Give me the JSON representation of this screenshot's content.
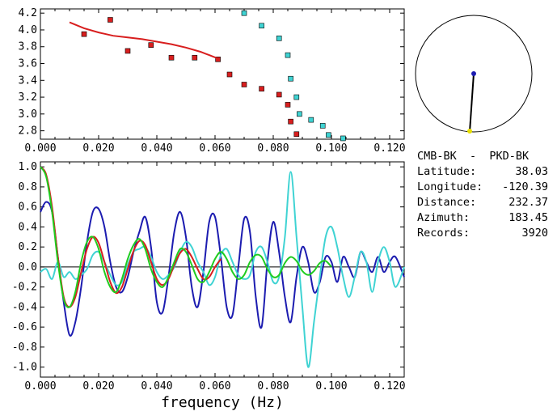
{
  "chart_data": [
    {
      "type": "scatter",
      "xlim": [
        0.0,
        0.125
      ],
      "ylim": [
        2.7,
        4.25
      ],
      "x_ticks": [
        "0.000",
        "0.020",
        "0.040",
        "0.060",
        "0.080",
        "0.100",
        "0.120"
      ],
      "y_ticks": [
        "2.8",
        "3.0",
        "3.2",
        "3.4",
        "3.6",
        "3.8",
        "4.0",
        "4.2"
      ],
      "series": [
        {
          "color": "#d81e1e",
          "marker": "square",
          "points": [
            [
              0.015,
              3.95
            ],
            [
              0.024,
              4.12
            ],
            [
              0.03,
              3.75
            ],
            [
              0.038,
              3.82
            ],
            [
              0.045,
              3.67
            ],
            [
              0.053,
              3.67
            ],
            [
              0.061,
              3.65
            ],
            [
              0.065,
              3.47
            ],
            [
              0.07,
              3.35
            ],
            [
              0.076,
              3.3
            ],
            [
              0.082,
              3.23
            ],
            [
              0.085,
              3.11
            ],
            [
              0.086,
              2.91
            ],
            [
              0.088,
              2.76
            ]
          ]
        },
        {
          "color": "#3fd3d3",
          "marker": "square",
          "points": [
            [
              0.07,
              4.2
            ],
            [
              0.076,
              4.05
            ],
            [
              0.082,
              3.9
            ],
            [
              0.085,
              3.7
            ],
            [
              0.086,
              3.42
            ],
            [
              0.088,
              3.2
            ],
            [
              0.089,
              3.0
            ],
            [
              0.093,
              2.93
            ],
            [
              0.097,
              2.86
            ],
            [
              0.099,
              2.75
            ],
            [
              0.104,
              2.71
            ]
          ]
        },
        {
          "color": "#d81e1e",
          "style": "line",
          "points": [
            [
              0.01,
              4.09
            ],
            [
              0.015,
              4.02
            ],
            [
              0.02,
              3.97
            ],
            [
              0.025,
              3.93
            ],
            [
              0.03,
              3.91
            ],
            [
              0.035,
              3.89
            ],
            [
              0.04,
              3.86
            ],
            [
              0.045,
              3.83
            ],
            [
              0.05,
              3.79
            ],
            [
              0.055,
              3.74
            ],
            [
              0.058,
              3.7
            ],
            [
              0.061,
              3.66
            ]
          ]
        }
      ]
    },
    {
      "type": "line",
      "xlabel": "frequency (Hz)",
      "xlim": [
        0.0,
        0.125
      ],
      "ylim": [
        -1.1,
        1.05
      ],
      "x_ticks": [
        "0.000",
        "0.020",
        "0.040",
        "0.060",
        "0.080",
        "0.100",
        "0.120"
      ],
      "y_ticks": [
        "1.0",
        "0.8",
        "0.6",
        "0.4",
        "0.2",
        "0.0",
        "-0.2",
        "-0.4",
        "-0.6",
        "-0.8",
        "-1.0"
      ],
      "zero_line": true,
      "series": [
        {
          "color": "#1c1cb0",
          "x": [
            0.0,
            0.002,
            0.004,
            0.006,
            0.008,
            0.01,
            0.012,
            0.014,
            0.016,
            0.018,
            0.02,
            0.022,
            0.024,
            0.026,
            0.028,
            0.03,
            0.032,
            0.034,
            0.036,
            0.038,
            0.04,
            0.042,
            0.044,
            0.046,
            0.048,
            0.05,
            0.052,
            0.054,
            0.056,
            0.058,
            0.06,
            0.062,
            0.064,
            0.066,
            0.068,
            0.07,
            0.072,
            0.074,
            0.076,
            0.078,
            0.08,
            0.082,
            0.084,
            0.086,
            0.088,
            0.09,
            0.092,
            0.094,
            0.096,
            0.098,
            0.1,
            0.102,
            0.104,
            0.106,
            0.108,
            0.11,
            0.112,
            0.114,
            0.116,
            0.118,
            0.12,
            0.122,
            0.125
          ],
          "y": [
            0.55,
            0.65,
            0.55,
            0.1,
            -0.35,
            -0.68,
            -0.55,
            -0.2,
            0.25,
            0.55,
            0.58,
            0.4,
            0.05,
            -0.2,
            -0.25,
            -0.1,
            0.15,
            0.35,
            0.5,
            0.2,
            -0.35,
            -0.45,
            -0.1,
            0.35,
            0.55,
            0.3,
            -0.2,
            -0.4,
            -0.05,
            0.45,
            0.5,
            0.1,
            -0.4,
            -0.48,
            0.0,
            0.48,
            0.35,
            -0.3,
            -0.6,
            0.05,
            0.45,
            0.15,
            -0.3,
            -0.55,
            -0.1,
            0.2,
            0.05,
            -0.25,
            -0.15,
            0.1,
            0.05,
            -0.15,
            0.1,
            0.0,
            -0.1,
            0.15,
            0.05,
            -0.05,
            0.1,
            -0.05,
            0.05,
            0.1,
            -0.1
          ]
        },
        {
          "color": "#3fd3d3",
          "x": [
            0.0,
            0.002,
            0.004,
            0.006,
            0.008,
            0.01,
            0.012,
            0.014,
            0.016,
            0.018,
            0.02,
            0.022,
            0.024,
            0.026,
            0.028,
            0.03,
            0.032,
            0.034,
            0.036,
            0.038,
            0.04,
            0.042,
            0.044,
            0.046,
            0.048,
            0.05,
            0.052,
            0.054,
            0.056,
            0.058,
            0.06,
            0.062,
            0.064,
            0.066,
            0.068,
            0.07,
            0.072,
            0.074,
            0.076,
            0.078,
            0.08,
            0.082,
            0.084,
            0.086,
            0.088,
            0.09,
            0.092,
            0.094,
            0.096,
            0.098,
            0.1,
            0.102,
            0.104,
            0.106,
            0.108,
            0.11,
            0.112,
            0.114,
            0.116,
            0.118,
            0.12,
            0.122,
            0.125
          ],
          "y": [
            -0.05,
            -0.02,
            -0.12,
            0.05,
            -0.1,
            -0.05,
            -0.12,
            -0.08,
            -0.02,
            0.12,
            0.15,
            0.05,
            -0.08,
            -0.18,
            -0.15,
            0.02,
            0.15,
            0.18,
            0.2,
            0.1,
            -0.05,
            -0.12,
            -0.08,
            0.0,
            0.15,
            0.25,
            0.2,
            0.05,
            -0.05,
            -0.18,
            -0.1,
            0.12,
            0.18,
            0.05,
            -0.08,
            -0.12,
            -0.08,
            0.15,
            0.2,
            0.05,
            -0.15,
            -0.1,
            0.3,
            0.95,
            0.3,
            -0.4,
            -1.0,
            -0.55,
            -0.1,
            0.3,
            0.4,
            0.2,
            -0.1,
            -0.3,
            -0.1,
            0.15,
            0.05,
            -0.25,
            0.05,
            0.2,
            0.05,
            -0.2,
            0.0
          ]
        },
        {
          "color": "#d81e1e",
          "x": [
            0.0,
            0.002,
            0.004,
            0.006,
            0.008,
            0.01,
            0.012,
            0.014,
            0.016,
            0.018,
            0.02,
            0.022,
            0.024,
            0.026,
            0.028,
            0.03,
            0.032,
            0.034,
            0.036,
            0.038,
            0.04,
            0.042,
            0.044,
            0.046,
            0.048,
            0.05,
            0.052,
            0.054,
            0.056,
            0.058,
            0.06,
            0.062
          ],
          "y": [
            1.0,
            0.92,
            0.6,
            0.1,
            -0.3,
            -0.4,
            -0.3,
            -0.05,
            0.18,
            0.3,
            0.24,
            0.05,
            -0.15,
            -0.26,
            -0.2,
            -0.02,
            0.16,
            0.26,
            0.22,
            0.05,
            -0.12,
            -0.18,
            -0.12,
            0.02,
            0.14,
            0.18,
            0.1,
            -0.02,
            -0.12,
            -0.1,
            0.0,
            0.08
          ]
        },
        {
          "color": "#1fcc1f",
          "x": [
            0.0,
            0.002,
            0.004,
            0.006,
            0.008,
            0.01,
            0.012,
            0.014,
            0.016,
            0.018,
            0.02,
            0.022,
            0.024,
            0.026,
            0.028,
            0.03,
            0.032,
            0.034,
            0.036,
            0.038,
            0.04,
            0.042,
            0.044,
            0.046,
            0.048,
            0.05,
            0.052,
            0.054,
            0.056,
            0.058,
            0.06,
            0.062,
            0.064,
            0.066,
            0.068,
            0.07,
            0.072,
            0.074,
            0.076,
            0.078,
            0.08,
            0.082,
            0.084,
            0.086,
            0.088,
            0.09,
            0.092,
            0.094,
            0.096,
            0.098,
            0.1
          ],
          "y": [
            1.0,
            0.9,
            0.55,
            0.05,
            -0.32,
            -0.4,
            -0.25,
            0.05,
            0.25,
            0.3,
            0.18,
            -0.05,
            -0.2,
            -0.25,
            -0.12,
            0.08,
            0.22,
            0.28,
            0.18,
            -0.02,
            -0.15,
            -0.2,
            -0.1,
            0.05,
            0.18,
            0.15,
            0.02,
            -0.12,
            -0.15,
            -0.05,
            0.08,
            0.15,
            0.08,
            -0.05,
            -0.12,
            -0.08,
            0.05,
            0.12,
            0.1,
            -0.02,
            -0.1,
            -0.08,
            0.04,
            0.1,
            0.06,
            -0.04,
            -0.08,
            -0.04,
            0.04,
            0.06,
            0.0
          ]
        }
      ]
    }
  ],
  "info": {
    "pair": "CMB-BK  -  PKD-BK",
    "rows": [
      {
        "label": "Latitude:",
        "value": "38.03"
      },
      {
        "label": "Longitude:",
        "value": "-120.39"
      },
      {
        "label": "Distance:",
        "value": "232.37"
      },
      {
        "label": "Azimuth:",
        "value": "183.45"
      },
      {
        "label": "Records:",
        "value": "3920"
      }
    ]
  },
  "compass": {
    "needle_color": "#000000",
    "center_dot_color": "#1c1cb0",
    "tip_dot_color": "#e8e000",
    "azimuth_deg": 183.45
  }
}
